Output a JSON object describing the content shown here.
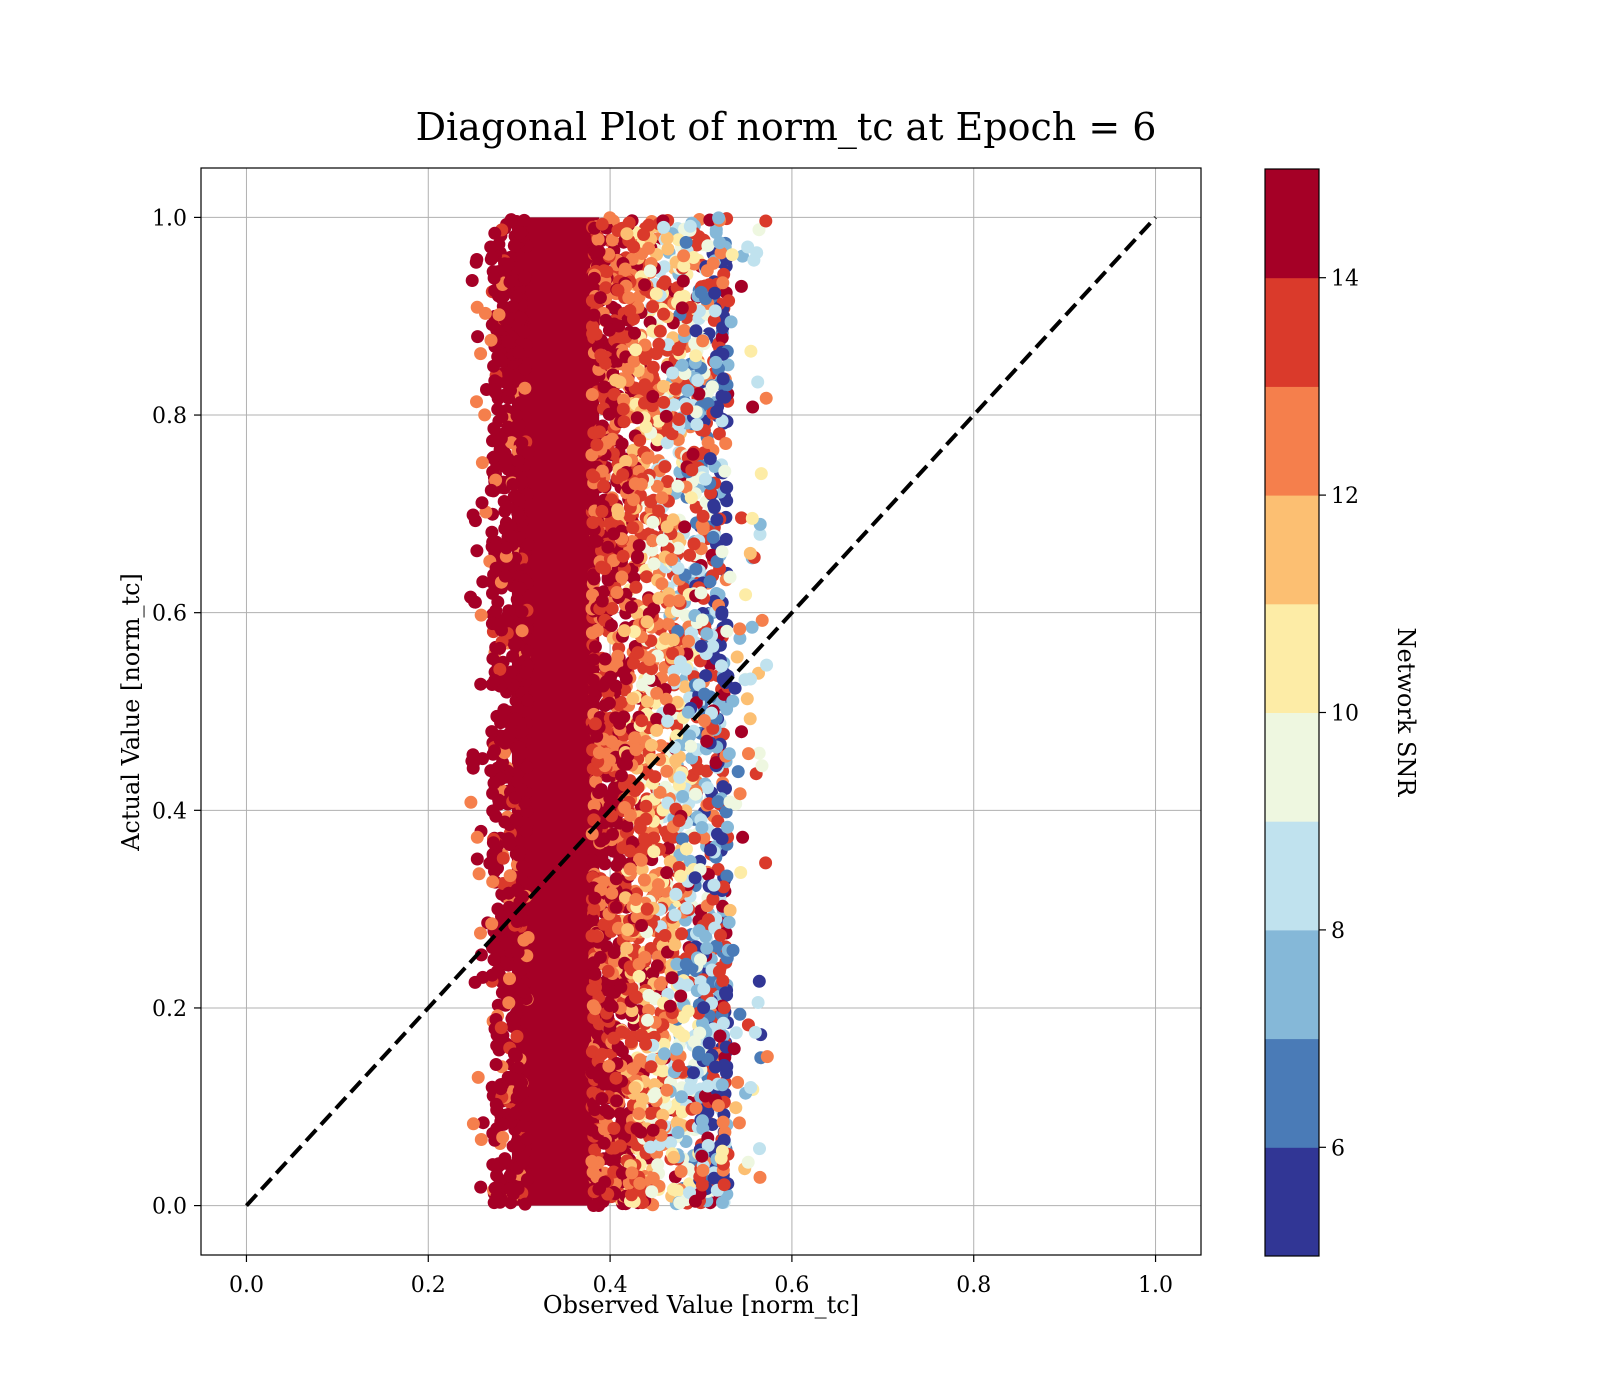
{
  "chart_data": {
    "type": "scatter",
    "title": "Diagonal Plot of norm_tc at Epoch = 6",
    "xlabel": "Observed Value [norm_tc]",
    "ylabel": "Actual Value [norm_tc]",
    "xlim": [
      -0.05,
      1.05
    ],
    "ylim": [
      -0.05,
      1.05
    ],
    "xticks": [
      "0.0",
      "0.2",
      "0.4",
      "0.6",
      "0.8",
      "1.0"
    ],
    "yticks": [
      "0.0",
      "0.2",
      "0.4",
      "0.6",
      "0.8",
      "1.0"
    ],
    "grid": true,
    "reference_line": {
      "style": "dashed",
      "color": "#000000",
      "from": [
        0,
        0
      ],
      "to": [
        1,
        1
      ]
    },
    "scatter_distribution": {
      "x_range": [
        0.245,
        0.575
      ],
      "y_range": [
        0.0,
        1.0
      ],
      "high_snr_core_x": [
        0.28,
        0.4
      ],
      "note_colors_by_snr": true
    },
    "colorbar": {
      "label": "Network SNR",
      "range": [
        5,
        15
      ],
      "levels": 10,
      "ticks": [
        "6",
        "8",
        "10",
        "12",
        "14"
      ],
      "colors": [
        "#313695",
        "#4575b4",
        "#74add1",
        "#abd9e9",
        "#e0f3f8",
        "#ffffbf",
        "#fee090",
        "#fdae61",
        "#f46d43",
        "#a50026"
      ],
      "segment_colors": [
        "#313695",
        "#4a7bb7",
        "#85b8d8",
        "#c0e2ee",
        "#eef7e0",
        "#fdeca6",
        "#fcbf72",
        "#f57f4c",
        "#da3a2b",
        "#a50026"
      ]
    }
  }
}
